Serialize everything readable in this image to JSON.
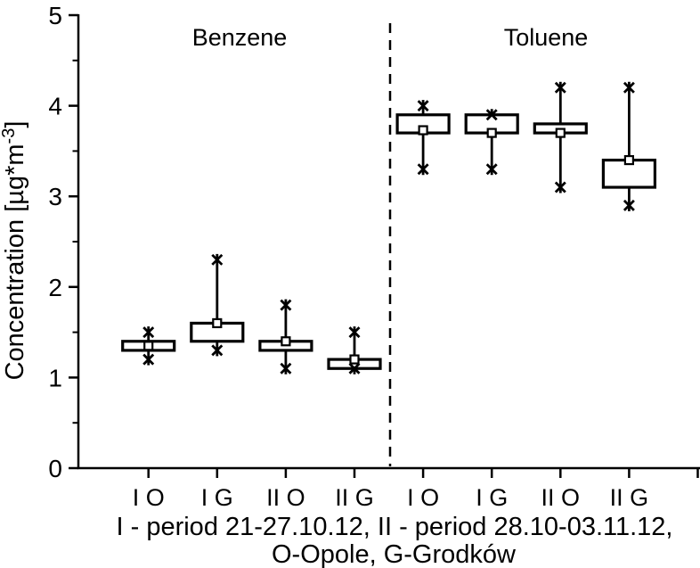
{
  "figure": {
    "background": "#ffffff",
    "ink": "#000000"
  },
  "chart_data": {
    "type": "box",
    "title": "",
    "group_labels": [
      "Benzene",
      "Toluene"
    ],
    "ylabel": "Concentration [µg*m⁻³]",
    "ylabel_parts": {
      "main": "Concentration [µg*m",
      "superscript": "-3",
      "close": "]"
    },
    "ylim": [
      0,
      5
    ],
    "ytick_values": [
      0,
      1,
      2,
      3,
      4,
      5
    ],
    "yminor_tick_step": 0.5,
    "grid": false,
    "legend": "none",
    "categories": [
      "I O",
      "I G",
      "II O",
      "II G",
      "I O",
      "I G",
      "II O",
      "II G"
    ],
    "separator_after_category_index": 3,
    "xlabel_lines": [
      "I - period 21-27.10.12, II - period 28.10-03.11.12,",
      "O-Opole, G-Grodków"
    ],
    "boxes": [
      {
        "category": "I O",
        "group": "Benzene",
        "q1": 1.3,
        "q3": 1.4,
        "mean": 1.35,
        "whisker_low": 1.2,
        "whisker_high": 1.5
      },
      {
        "category": "I G",
        "group": "Benzene",
        "q1": 1.4,
        "q3": 1.6,
        "mean": 1.6,
        "whisker_low": 1.3,
        "whisker_high": 2.3
      },
      {
        "category": "II O",
        "group": "Benzene",
        "q1": 1.3,
        "q3": 1.4,
        "mean": 1.4,
        "whisker_low": 1.1,
        "whisker_high": 1.8
      },
      {
        "category": "II G",
        "group": "Benzene",
        "q1": 1.1,
        "q3": 1.2,
        "mean": 1.2,
        "whisker_low": 1.1,
        "whisker_high": 1.5
      },
      {
        "category": "I O",
        "group": "Toluene",
        "q1": 3.7,
        "q3": 3.9,
        "mean": 3.73,
        "whisker_low": 3.3,
        "whisker_high": 4.0
      },
      {
        "category": "I G",
        "group": "Toluene",
        "q1": 3.7,
        "q3": 3.9,
        "mean": 3.7,
        "whisker_low": 3.3,
        "whisker_high": 3.9
      },
      {
        "category": "II O",
        "group": "Toluene",
        "q1": 3.7,
        "q3": 3.8,
        "mean": 3.7,
        "whisker_low": 3.1,
        "whisker_high": 4.2
      },
      {
        "category": "II G",
        "group": "Toluene",
        "q1": 3.1,
        "q3": 3.4,
        "mean": 3.4,
        "whisker_low": 2.9,
        "whisker_high": 4.2
      }
    ]
  }
}
